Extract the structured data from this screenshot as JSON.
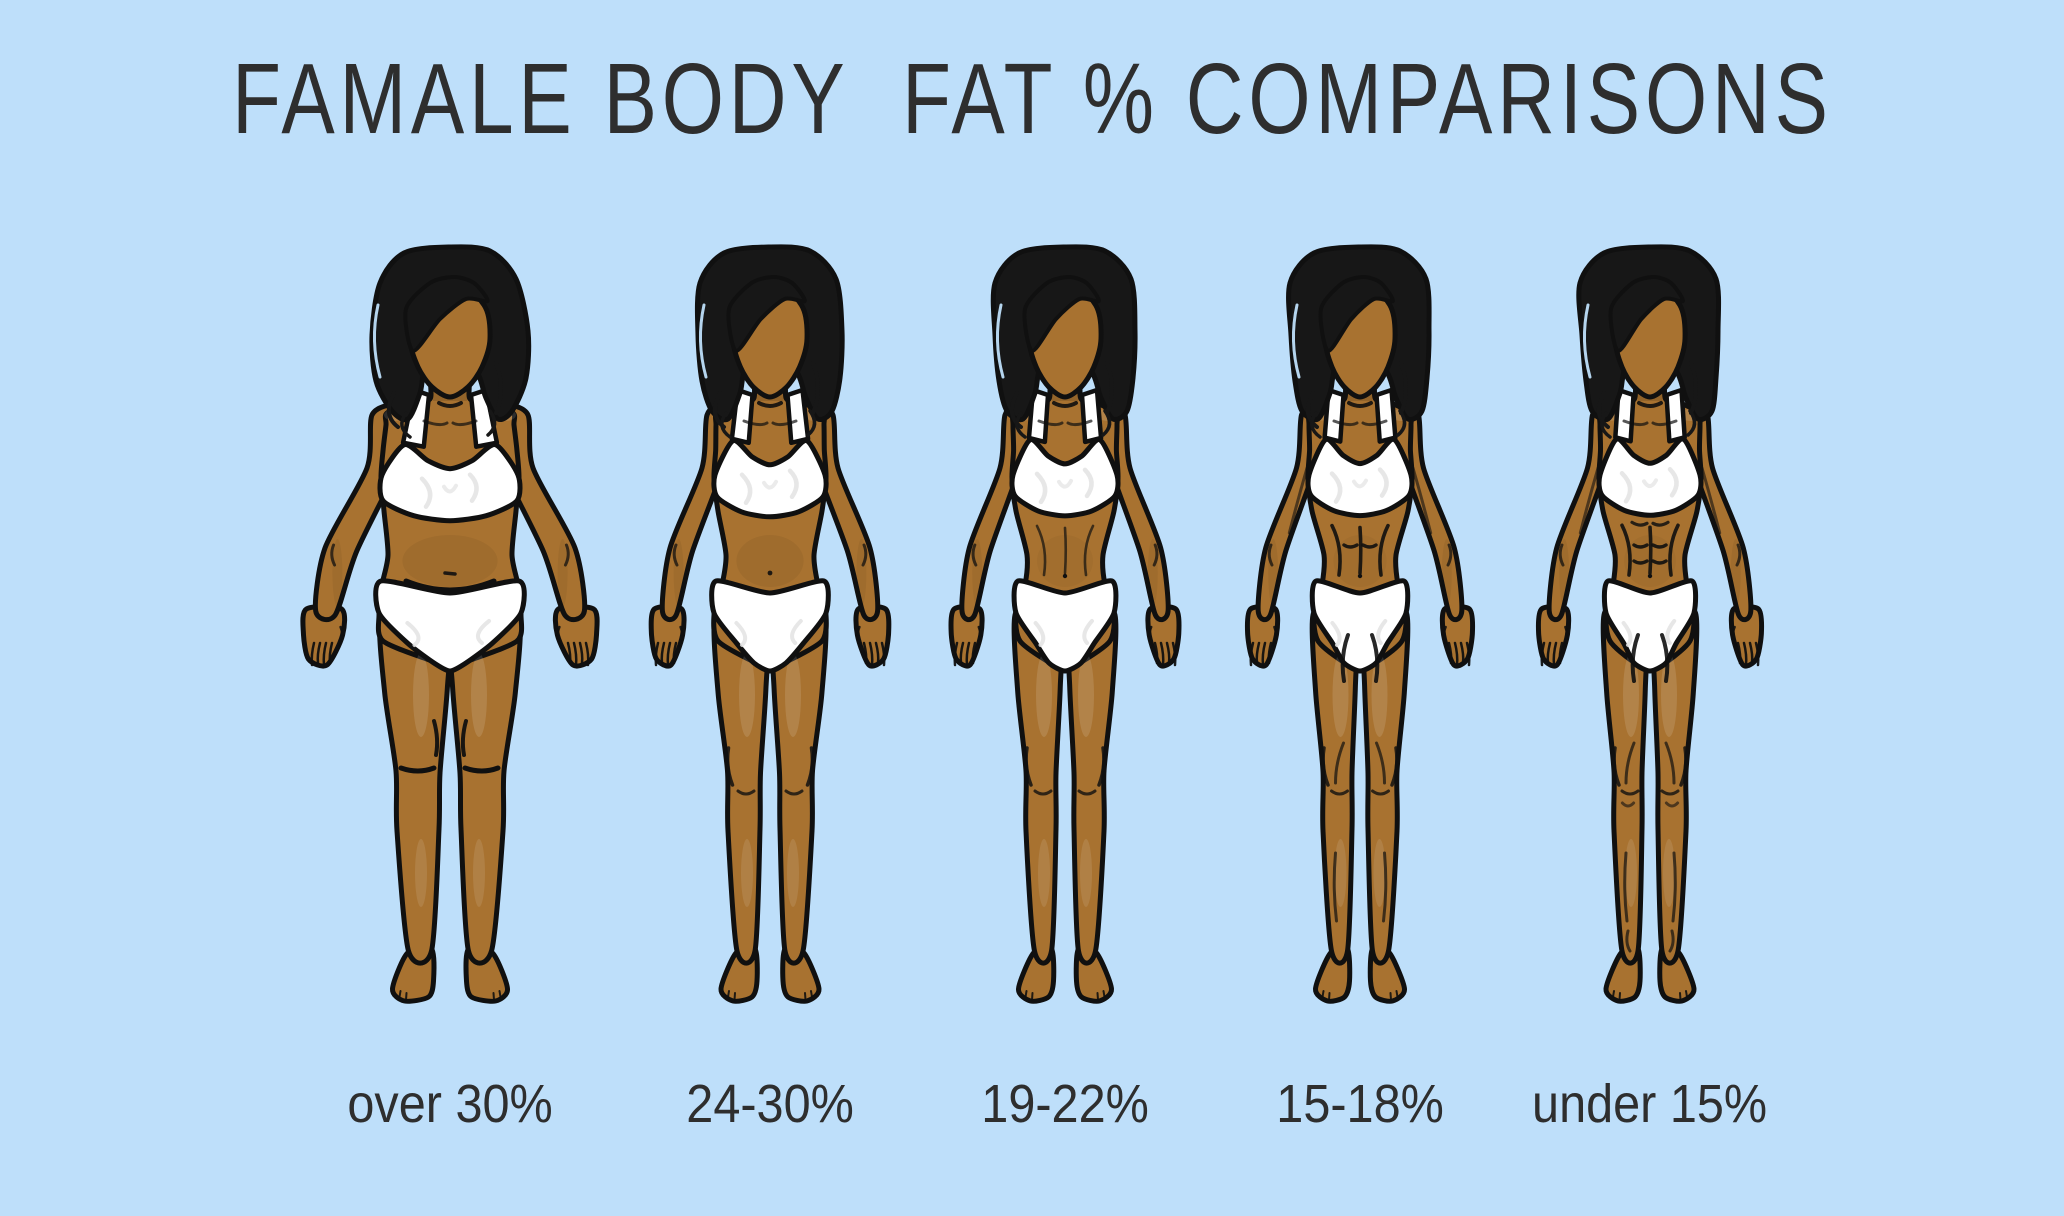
{
  "title": "FAMALE BODY  FAT % COMPARISONS",
  "figures": [
    {
      "id": "over-30",
      "label": "over 30%"
    },
    {
      "id": "24-30",
      "label": "24-30%"
    },
    {
      "id": "19-22",
      "label": "19-22%"
    },
    {
      "id": "15-18",
      "label": "15-18%"
    },
    {
      "id": "under-15",
      "label": "under 15%"
    }
  ],
  "colors": {
    "background": "#bedffa",
    "skin": "#a87230",
    "hair": "#171717",
    "outline": "#101010",
    "garment": "#ffffff",
    "garment_shade": "#e3e3e3",
    "text": "#2e2e2e"
  }
}
